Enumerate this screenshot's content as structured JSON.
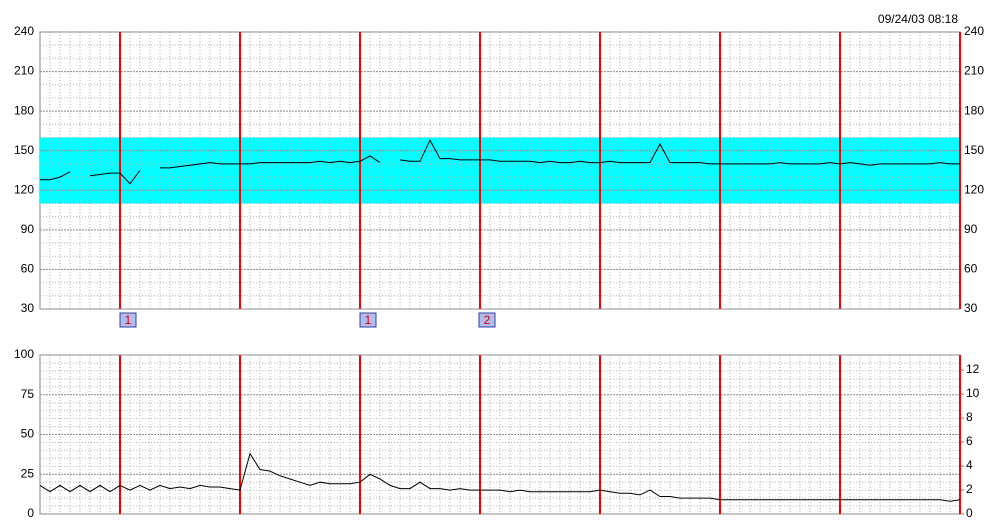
{
  "timestamp": "09/24/03 08:18",
  "chart_data": [
    {
      "type": "line",
      "ylim": [
        30,
        240
      ],
      "yticks": [
        30,
        60,
        90,
        120,
        150,
        180,
        210,
        240
      ],
      "band": {
        "range": [
          110,
          160
        ],
        "color": "#00ffff"
      },
      "grid": true,
      "series": [
        {
          "color": "#000000",
          "values": [
            128,
            128,
            130,
            134,
            null,
            131,
            132,
            133,
            133,
            125,
            135,
            null,
            137,
            137,
            138,
            139,
            140,
            141,
            140,
            140,
            140,
            140,
            141,
            141,
            141,
            141,
            141,
            141,
            142,
            141,
            142,
            141,
            142,
            146,
            141,
            null,
            143,
            142,
            142,
            158,
            144,
            144,
            143,
            143,
            143,
            143,
            142,
            142,
            142,
            142,
            141,
            142,
            141,
            141,
            142,
            141,
            141,
            142,
            141,
            141,
            141,
            141,
            155,
            141,
            141,
            141,
            141,
            140,
            140,
            140,
            140,
            140,
            140,
            140,
            141,
            140,
            140,
            140,
            140,
            141,
            140,
            141,
            140,
            139,
            140,
            140,
            140,
            140,
            140,
            140,
            141,
            140,
            140
          ]
        }
      ],
      "markers": [
        {
          "label": "1",
          "x": 8.8
        },
        {
          "label": "1",
          "x": 32.8
        },
        {
          "label": "2",
          "x": 44.7
        }
      ]
    },
    {
      "type": "line",
      "ylim": [
        0,
        100
      ],
      "yticks": [
        0,
        25,
        50,
        75,
        100
      ],
      "y2lim": [
        0,
        13.25
      ],
      "y2ticks": [
        0,
        2,
        4,
        6,
        8,
        10,
        12
      ],
      "grid": true,
      "series": [
        {
          "color": "#000000",
          "values": [
            18,
            14,
            18,
            14,
            18,
            14,
            18,
            14,
            18,
            15,
            18,
            15,
            18,
            16,
            17,
            16,
            18,
            17,
            17,
            16,
            15,
            38,
            28,
            27,
            24,
            22,
            20,
            18,
            20,
            19,
            19,
            19,
            20,
            25,
            22,
            18,
            16,
            16,
            20,
            16,
            16,
            15,
            16,
            15,
            15,
            15,
            15,
            14,
            15,
            14,
            14,
            14,
            14,
            14,
            14,
            14,
            15,
            14,
            13,
            13,
            12,
            15,
            11,
            11,
            10,
            10,
            10,
            10,
            9,
            9,
            9,
            9,
            9,
            9,
            9,
            9,
            9,
            9,
            9,
            9,
            9,
            9,
            9,
            9,
            9,
            9,
            9,
            9,
            9,
            9,
            9,
            8,
            9
          ]
        }
      ]
    }
  ]
}
